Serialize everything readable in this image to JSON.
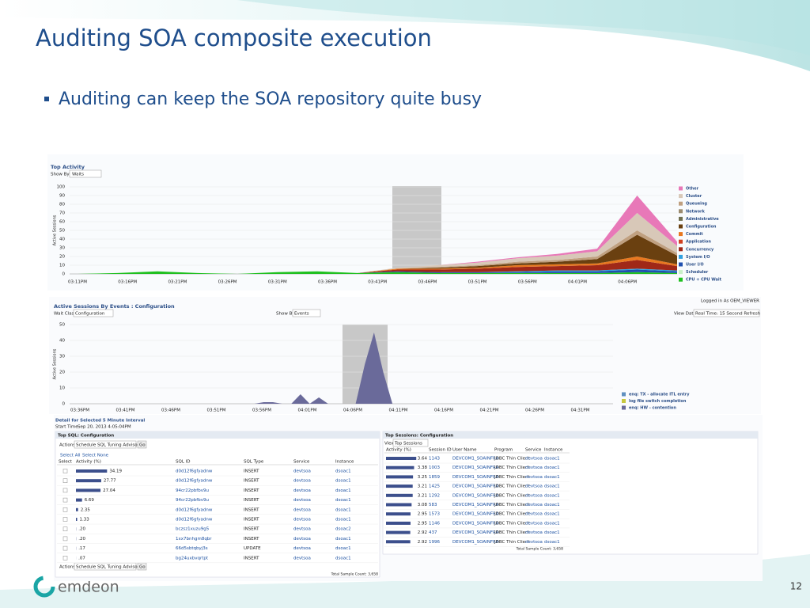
{
  "slide": {
    "title": "Auditing SOA composite execution",
    "bullet": "Auditing can keep the SOA repository quite busy",
    "logo": "emdeon",
    "page_number": "12"
  },
  "top_activity": {
    "title": "Top Activity",
    "show_by_label": "Show By",
    "show_by_value": "Waits"
  },
  "events_panel": {
    "title": "Active Sessions By Events : Configuration",
    "logged_in": "Logged in As OEM_VIEWER",
    "wait_class_label": "Wait Class",
    "wait_class_value": "Configuration",
    "show_by_label": "Show By",
    "show_by_value": "Events",
    "view_data_label": "View Data",
    "view_data_value": "Real Time: 15 Second Refresh"
  },
  "chart_data": [
    {
      "type": "area",
      "stacked": true,
      "y_label": "Active Sessions",
      "ylim": [
        0,
        100
      ],
      "yticks": [
        0,
        10,
        20,
        30,
        40,
        50,
        60,
        70,
        80,
        90,
        100
      ],
      "grid": true,
      "x_tick_labels": [
        "03:11PM",
        "03:16PM",
        "03:21PM",
        "03:26PM",
        "03:31PM",
        "03:36PM",
        "03:41PM",
        "03:46PM",
        "03:51PM",
        "03:56PM",
        "04:01PM",
        "04:06PM"
      ],
      "legend": "right",
      "series": [
        {
          "name": "Other",
          "color": "#e878b8",
          "values": [
            0,
            0,
            0,
            0,
            0,
            0,
            0,
            0,
            0,
            0,
            1,
            1,
            2,
            3,
            20,
            5
          ]
        },
        {
          "name": "Cluster",
          "color": "#d8c8b8",
          "values": [
            0,
            0,
            0,
            0,
            0,
            0,
            0,
            0,
            1,
            2,
            3,
            4,
            5,
            6,
            20,
            8
          ]
        },
        {
          "name": "Queueing",
          "color": "#c0a080",
          "values": [
            0,
            0,
            0,
            0,
            0,
            0,
            0,
            0,
            0,
            1,
            1,
            2,
            2,
            3,
            5,
            3
          ]
        },
        {
          "name": "Network",
          "color": "#9c8c70",
          "values": [
            0,
            0,
            0,
            0,
            0,
            0,
            0,
            0,
            0,
            0,
            0,
            0,
            0,
            0,
            0,
            0
          ]
        },
        {
          "name": "Administrative",
          "color": "#707050",
          "values": [
            0,
            0,
            0,
            0,
            0,
            0,
            0,
            0,
            0,
            0,
            0,
            0,
            0,
            0,
            0,
            0
          ]
        },
        {
          "name": "Configuration",
          "color": "#6a4010",
          "values": [
            0,
            0,
            0,
            0,
            0,
            0,
            0,
            0,
            0,
            1,
            2,
            2,
            3,
            5,
            25,
            10
          ]
        },
        {
          "name": "Commit",
          "color": "#e87820",
          "values": [
            0,
            0,
            0,
            0,
            0,
            0,
            0,
            0,
            1,
            1,
            1,
            2,
            2,
            2,
            4,
            2
          ]
        },
        {
          "name": "Application",
          "color": "#d04020",
          "values": [
            0,
            0,
            0,
            0,
            0,
            0,
            0,
            0,
            0,
            0,
            0,
            0,
            0,
            0,
            0,
            0
          ]
        },
        {
          "name": "Concurrency",
          "color": "#a02818",
          "values": [
            0,
            0,
            0,
            0,
            0,
            0,
            0,
            0,
            2,
            3,
            4,
            5,
            5,
            6,
            10,
            5
          ]
        },
        {
          "name": "System I/O",
          "color": "#30a0e0",
          "values": [
            0,
            0,
            0,
            0,
            0,
            0,
            0,
            0,
            0,
            0,
            0,
            1,
            1,
            1,
            1,
            1
          ]
        },
        {
          "name": "User I/O",
          "color": "#2050b0",
          "values": [
            0,
            0,
            0,
            0,
            0,
            0,
            0,
            0,
            1,
            1,
            1,
            1,
            2,
            2,
            3,
            2
          ]
        },
        {
          "name": "Scheduler",
          "color": "#c8f0c8",
          "values": [
            0,
            0,
            0,
            0,
            0,
            0,
            0,
            0,
            0,
            0,
            0,
            0,
            0,
            0,
            0,
            0
          ]
        },
        {
          "name": "CPU + CPU Wait",
          "color": "#20c020",
          "values": [
            0,
            1,
            3,
            1,
            0,
            2,
            3,
            1,
            2,
            1,
            1,
            1,
            1,
            1,
            2,
            1
          ]
        }
      ]
    },
    {
      "type": "area",
      "stacked": true,
      "y_label": "Active Sessions",
      "ylim": [
        0,
        50
      ],
      "yticks": [
        0,
        10,
        20,
        30,
        40,
        50
      ],
      "grid": true,
      "x_tick_labels": [
        "03:36PM",
        "03:41PM",
        "03:46PM",
        "03:51PM",
        "03:56PM",
        "04:01PM",
        "04:06PM",
        "04:11PM",
        "04:16PM",
        "04:21PM",
        "04:26PM",
        "04:31PM"
      ],
      "legend": "right",
      "series": [
        {
          "name": "enq: TX - allocate ITL entry",
          "color": "#6090c0",
          "values": [
            0,
            0,
            0,
            0,
            0,
            0,
            0,
            0,
            0,
            0,
            0,
            0,
            0,
            0,
            0,
            0,
            0,
            0,
            0,
            0,
            0,
            0,
            0,
            0,
            0,
            0,
            0,
            0,
            0,
            0,
            0,
            0,
            0,
            0,
            0,
            0,
            0,
            0,
            0,
            0,
            0,
            0,
            0,
            0,
            0,
            0,
            0,
            0,
            0,
            0,
            0,
            0,
            0,
            0,
            0,
            0,
            0,
            0,
            0
          ]
        },
        {
          "name": "log file switch completion",
          "color": "#c8c840",
          "values": [
            0,
            0,
            0,
            0,
            0,
            0,
            0,
            0,
            0,
            0,
            0,
            0,
            0,
            0,
            0,
            0,
            0,
            0,
            0,
            0,
            0,
            0,
            0,
            0,
            0,
            0,
            0,
            0,
            0,
            0,
            0,
            0,
            0,
            0,
            0,
            0,
            0,
            0,
            0,
            0,
            0,
            0,
            0,
            0,
            0,
            0,
            0,
            0,
            0,
            0,
            0,
            0,
            0,
            0,
            0,
            0,
            0,
            0,
            0
          ]
        },
        {
          "name": "enq: HW - contention",
          "color": "#6a6a9a",
          "values": [
            0,
            0,
            0,
            0,
            0,
            0,
            0,
            0,
            0,
            0,
            0,
            0,
            0,
            0,
            0,
            0,
            0,
            0,
            0,
            0,
            1,
            1,
            0,
            0,
            6,
            0,
            4,
            0,
            0,
            0,
            0,
            25,
            45,
            20,
            0,
            0,
            0,
            0,
            0,
            0,
            0,
            0,
            0,
            0,
            0,
            0,
            0,
            0,
            0,
            0,
            0,
            0,
            0,
            0,
            0,
            0,
            0,
            0,
            0
          ]
        }
      ]
    }
  ],
  "detail": {
    "title": "Detail for Selected 5 Minute Interval",
    "start_label": "Start Time",
    "start_value": "Sep 20, 2013 4:05:04PM"
  },
  "top_sql": {
    "title": "Top SQL: Configuration",
    "actions_label": "Actions",
    "actions_value": "Schedule SQL Tuning Advisor",
    "go": "Go",
    "select_all": "Select All",
    "select_none": "Select None",
    "headers": [
      "Select",
      "Activity (%)",
      "SQL ID",
      "SQL Type",
      "Service",
      "Instance"
    ],
    "activity": [
      34.19,
      27.77,
      27.04,
      6.69,
      2.35,
      1.33,
      0.2,
      0.2,
      0.17,
      0.07
    ],
    "activity_labels": [
      "34.19",
      "27.77",
      "27.04",
      "6.69",
      "2.35",
      "1.33",
      ".20",
      ".20",
      ".17",
      ".07"
    ],
    "rows": [
      [
        "d0d12f6gfyadnw",
        "INSERT",
        "devtsoa",
        "dsoac1"
      ],
      [
        "d0d12f6gfyadnw",
        "INSERT",
        "devtsoa",
        "dsoac1"
      ],
      [
        "94cr22pbfbv9u",
        "INSERT",
        "devtsoa",
        "dsoac1"
      ],
      [
        "94cr22pbfbv9u",
        "INSERT",
        "devtsoa",
        "dsoac1"
      ],
      [
        "d0d12f6gfyadnw",
        "INSERT",
        "devtsoa",
        "dsoac1"
      ],
      [
        "d0d12f6gfyadnw",
        "INSERT",
        "devtsoa",
        "dsoac1"
      ],
      [
        "bczsz1xuzu9g5",
        "INSERT",
        "devtsoa",
        "dsoac2"
      ],
      [
        "1xx7bnhgm8qbr",
        "INSERT",
        "devtsoa",
        "dsoac1"
      ],
      [
        "66d5sbtqbyj3s",
        "UPDATE",
        "devtsoa",
        "dsoac1"
      ],
      [
        "bg24uxbvqrtpt",
        "INSERT",
        "devtsoa",
        "dsoac1"
      ]
    ],
    "footer_actions_label": "Actions",
    "footer_actions_value": "Schedule SQL Tuning Advisor",
    "footer_go": "Go",
    "total": "Total Sample Count: 3,658"
  },
  "top_sessions": {
    "title": "Top Sessions: Configuration",
    "view_label": "View",
    "view_value": "Top Sessions",
    "headers": [
      "Activity (%)",
      "Session ID",
      "User Name",
      "Program",
      "Service",
      "Instance"
    ],
    "activity": [
      3.64,
      3.38,
      3.25,
      3.21,
      3.21,
      3.08,
      2.95,
      2.95,
      2.92,
      2.92
    ],
    "rows": [
      [
        "1143",
        "DEVCOM1_SOAINFRA",
        "JDBC Thin Client",
        "devtsoa",
        "dsoac1"
      ],
      [
        "1003",
        "DEVCOM1_SOAINFRA",
        "JDBC Thin Client",
        "devtsoa",
        "dsoac1"
      ],
      [
        "1859",
        "DEVCOM1_SOAINFRA",
        "JDBC Thin Client",
        "devtsoa",
        "dsoac1"
      ],
      [
        "1425",
        "DEVCOM1_SOAINFRA",
        "JDBC Thin Client",
        "devtsoa",
        "dsoac1"
      ],
      [
        "1292",
        "DEVCOM1_SOAINFRA",
        "JDBC Thin Client",
        "devtsoa",
        "dsoac1"
      ],
      [
        "583",
        "DEVCOM1_SOAINFRA",
        "JDBC Thin Client",
        "devtsoa",
        "dsoac1"
      ],
      [
        "1573",
        "DEVCOM1_SOAINFRA",
        "JDBC Thin Client",
        "devtsoa",
        "dsoac1"
      ],
      [
        "1146",
        "DEVCOM1_SOAINFRA",
        "JDBC Thin Client",
        "devtsoa",
        "dsoac1"
      ],
      [
        "437",
        "DEVCOM1_SOAINFRA",
        "JDBC Thin Client",
        "devtsoa",
        "dsoac1"
      ],
      [
        "1996",
        "DEVCOM1_SOAINFRA",
        "JDBC Thin Client",
        "devtsoa",
        "dsoac1"
      ]
    ],
    "total": "Total Sample Count: 3,658"
  }
}
